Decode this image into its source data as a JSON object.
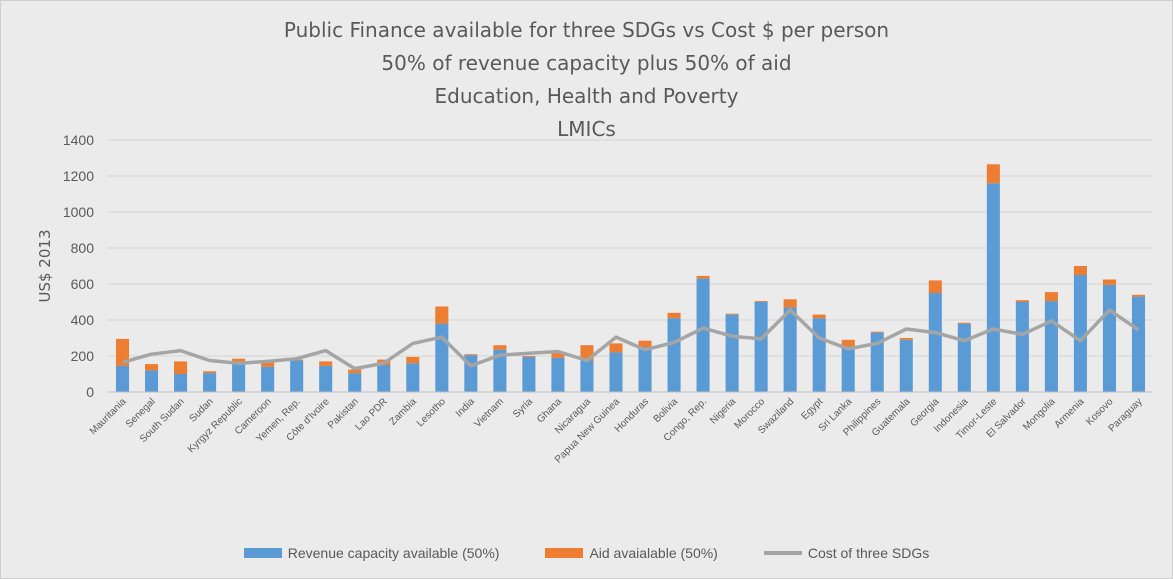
{
  "chart_data": {
    "type": "bar",
    "stacked": true,
    "title_lines": [
      "Public Finance available for three SDGs vs Cost $ per person",
      "50% of revenue capacity plus 50% of aid",
      "Education, Health and Poverty",
      "LMICs"
    ],
    "ylabel": "US$ 2013",
    "xlabel": "",
    "ylim": [
      0,
      1400
    ],
    "yticks": [
      0,
      200,
      400,
      600,
      800,
      1000,
      1200,
      1400
    ],
    "grid": true,
    "legend_position": "bottom",
    "categories": [
      "Mauritania",
      "Senegal",
      "South Sudan",
      "Sudan",
      "Kyrgyz Republic",
      "Cameroon",
      "Yemen, Rep.",
      "Côte d'Ivoire",
      "Pakistan",
      "Lao PDR",
      "Zambia",
      "Lesotho",
      "India",
      "Vietnam",
      "Syria",
      "Ghana",
      "Nicaragua",
      "Papua New Guinea",
      "Honduras",
      "Bolivia",
      "Congo, Rep.",
      "Nigeria",
      "Morocco",
      "Swaziland",
      "Egypt",
      "Sri Lanka",
      "Philippines",
      "Guatemala",
      "Georgia",
      "Indonesia",
      "Timor-Leste",
      "El Salvador",
      "Mongolia",
      "Armenia",
      "Kosovo",
      "Paraguay"
    ],
    "series": [
      {
        "name": "Revenue capacity available (50%)",
        "kind": "bar",
        "color": "#5b9bd5",
        "values": [
          145,
          120,
          100,
          105,
          155,
          140,
          175,
          145,
          105,
          150,
          160,
          380,
          205,
          235,
          195,
          190,
          175,
          220,
          250,
          410,
          630,
          430,
          500,
          470,
          410,
          255,
          330,
          290,
          550,
          380,
          1160,
          500,
          505,
          650,
          595,
          530
        ]
      },
      {
        "name": "Aid avaialable (50%)",
        "kind": "bar",
        "color": "#ed7d31",
        "values": [
          150,
          35,
          70,
          10,
          30,
          25,
          5,
          25,
          20,
          30,
          35,
          95,
          5,
          25,
          5,
          25,
          85,
          50,
          35,
          30,
          15,
          5,
          5,
          45,
          20,
          35,
          5,
          10,
          70,
          5,
          105,
          10,
          50,
          50,
          30,
          10
        ]
      },
      {
        "name": "Cost of three SDGs",
        "kind": "line",
        "color": "#a5a5a5",
        "values": [
          165,
          210,
          230,
          175,
          160,
          170,
          185,
          230,
          130,
          160,
          270,
          305,
          145,
          205,
          215,
          225,
          175,
          305,
          235,
          275,
          355,
          310,
          295,
          455,
          300,
          240,
          270,
          350,
          330,
          285,
          350,
          320,
          395,
          285,
          455,
          345
        ]
      }
    ]
  }
}
